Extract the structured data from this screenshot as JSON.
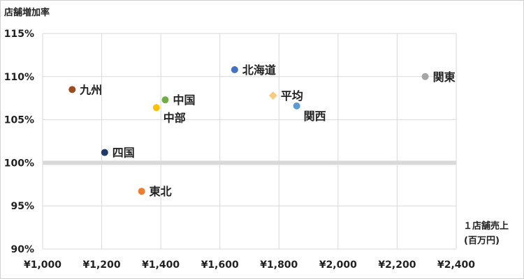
{
  "chart_data": {
    "type": "scatter",
    "title": "",
    "ylabel": "店舗増加率",
    "xlabel_line1": "１店舗売上",
    "xlabel_line2": "(百万円)",
    "xlim": [
      1000,
      2400
    ],
    "ylim": [
      90,
      115
    ],
    "x_ticks": [
      1000,
      1200,
      1400,
      1600,
      1800,
      2000,
      2200,
      2400
    ],
    "y_ticks": [
      90,
      95,
      100,
      105,
      110,
      115
    ],
    "x_tick_labels": [
      "¥1,000",
      "¥1,200",
      "¥1,400",
      "¥1,600",
      "¥1,800",
      "¥2,000",
      "¥2,200",
      "¥2,400"
    ],
    "y_tick_labels": [
      "90%",
      "95%",
      "100%",
      "105%",
      "110%",
      "115%"
    ],
    "reference_line_y": 100,
    "grid": true,
    "points": [
      {
        "label": "九州",
        "x": 1100,
        "y": 108.5,
        "color": "#9e4a1e",
        "shape": "circle",
        "label_pos": "right"
      },
      {
        "label": "四国",
        "x": 1210,
        "y": 101.2,
        "color": "#1f3a6b",
        "shape": "circle",
        "label_pos": "right"
      },
      {
        "label": "東北",
        "x": 1335,
        "y": 96.7,
        "color": "#ed7d31",
        "shape": "circle",
        "label_pos": "right"
      },
      {
        "label": "中部",
        "x": 1385,
        "y": 106.4,
        "color": "#ffc000",
        "shape": "circle",
        "label_pos": "below-right"
      },
      {
        "label": "中国",
        "x": 1415,
        "y": 107.3,
        "color": "#70ad47",
        "shape": "circle",
        "label_pos": "right"
      },
      {
        "label": "北海道",
        "x": 1650,
        "y": 110.8,
        "color": "#4472c4",
        "shape": "circle",
        "label_pos": "right"
      },
      {
        "label": "平均",
        "x": 1780,
        "y": 107.8,
        "color": "#f8cb82",
        "shape": "diamond",
        "label_pos": "right"
      },
      {
        "label": "関西",
        "x": 1860,
        "y": 106.6,
        "color": "#5b9bd5",
        "shape": "circle",
        "label_pos": "below-right"
      },
      {
        "label": "関東",
        "x": 2295,
        "y": 110.0,
        "color": "#a5a5a5",
        "shape": "circle",
        "label_pos": "right"
      }
    ]
  }
}
